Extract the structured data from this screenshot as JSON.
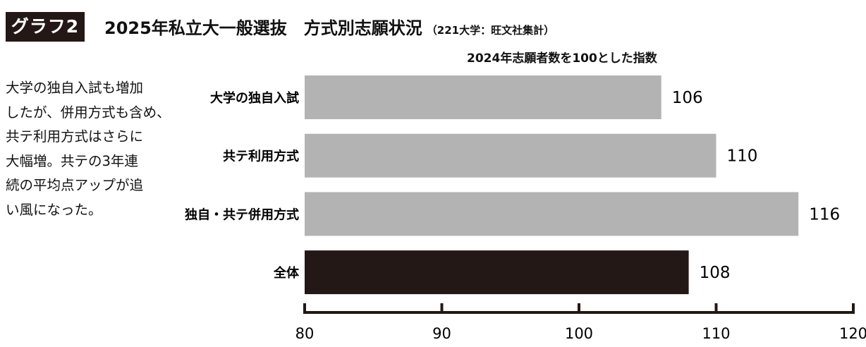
{
  "header": {
    "badge": "グラフ2",
    "title": "2025年私立大一般選抜　方式別志願状況",
    "source": "（221大学：旺文社集計）"
  },
  "lead_text": [
    "大学の独自入試も増加",
    "したが、併用方式も含め、",
    "共テ利用方式はさらに",
    "大幅増。共テの3年連",
    "続の平均点アップが追",
    "い風になった。"
  ],
  "chart_data": {
    "type": "bar",
    "orientation": "horizontal",
    "title": "2025年私立大一般選抜　方式別志願状況",
    "unit_label": "2024年志願者数を100とした指数",
    "categories": [
      "大学の独自入試",
      "共テ利用方式",
      "独自・共テ併用方式",
      "全体"
    ],
    "values": [
      106,
      110,
      116,
      108
    ],
    "value_labels": [
      "106",
      "110",
      "116",
      "108"
    ],
    "colors": [
      "#b3b3b3",
      "#b3b3b3",
      "#b3b3b3",
      "#231815"
    ],
    "xlim": [
      80,
      120
    ],
    "xticks": [
      80,
      90,
      100,
      110,
      120
    ],
    "tick_labels": [
      "80",
      "90",
      "100",
      "110",
      "120"
    ],
    "grid": false,
    "legend": "none"
  }
}
